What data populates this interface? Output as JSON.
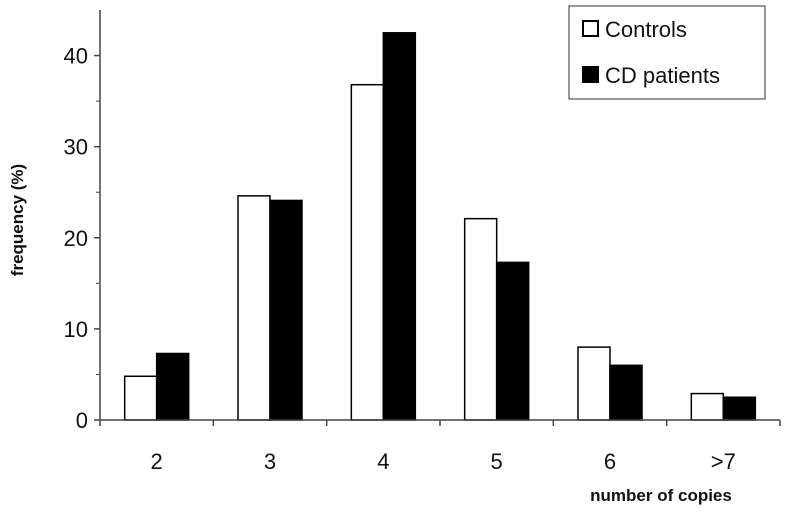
{
  "chart_data": {
    "type": "bar",
    "title": "",
    "xlabel": "number of copies",
    "ylabel": "frequency (%)",
    "categories": [
      "2",
      "3",
      "4",
      "5",
      "6",
      ">7"
    ],
    "ylim": [
      0,
      45
    ],
    "yticks": [
      0,
      10,
      20,
      30,
      40
    ],
    "grid": false,
    "legend_position": "top-right",
    "series": [
      {
        "name": "Controls",
        "values": [
          4.8,
          24.6,
          36.8,
          22.1,
          8.0,
          2.9
        ],
        "fill": "#ffffff",
        "stroke": "#000000"
      },
      {
        "name": "CD patients",
        "values": [
          7.3,
          24.1,
          42.5,
          17.3,
          6.0,
          2.5
        ],
        "fill": "#000000",
        "stroke": "#000000"
      }
    ]
  }
}
